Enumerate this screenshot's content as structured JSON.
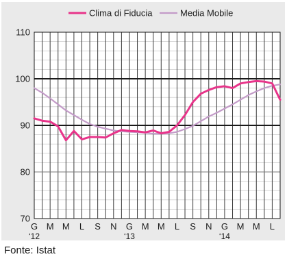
{
  "chart_data": {
    "type": "line",
    "x_tick_labels": [
      "G",
      "M",
      "M",
      "L",
      "S",
      "N",
      "G",
      "M",
      "M",
      "L",
      "S",
      "N",
      "G",
      "M",
      "M",
      "L"
    ],
    "x_year_labels": [
      {
        "tick_index": 0,
        "label": "‘12"
      },
      {
        "tick_index": 6,
        "label": "‘13"
      },
      {
        "tick_index": 12,
        "label": "‘14"
      }
    ],
    "x_months": [
      1,
      2,
      3,
      4,
      5,
      6,
      7,
      8,
      9,
      10,
      11,
      12,
      13,
      14,
      15,
      16,
      17,
      18,
      19,
      20,
      21,
      22,
      23,
      24,
      25,
      26,
      27,
      28,
      29,
      30,
      31,
      32
    ],
    "x_range": [
      1,
      32
    ],
    "y_range": [
      70,
      110
    ],
    "y_ticks": [
      70,
      80,
      90,
      100,
      110
    ],
    "y_major_lines": [
      90,
      100
    ],
    "grid": true,
    "legend_position": "top",
    "series": [
      {
        "name": "Clima di Fiducia",
        "color": "#e8348a",
        "values": [
          91.5,
          91.0,
          90.8,
          89.8,
          86.8,
          88.8,
          87.0,
          87.5,
          87.5,
          87.4,
          88.3,
          89.0,
          88.8,
          88.7,
          88.5,
          88.9,
          88.3,
          88.6,
          90.0,
          92.2,
          95.0,
          96.8,
          97.6,
          98.2,
          98.4,
          98.0,
          99.0,
          99.3,
          99.5,
          99.4,
          99.0,
          95.5
        ]
      },
      {
        "name": "Media Mobile",
        "color": "#c39bc8",
        "values": [
          98.0,
          97.0,
          95.8,
          94.5,
          93.2,
          92.2,
          91.2,
          90.3,
          89.7,
          89.3,
          88.9,
          88.7,
          88.6,
          88.5,
          88.4,
          88.2,
          88.2,
          88.3,
          88.6,
          89.2,
          89.9,
          90.9,
          91.9,
          92.7,
          93.6,
          94.5,
          95.5,
          96.5,
          97.3,
          98.0,
          98.5,
          98.8
        ]
      }
    ]
  },
  "footer": {
    "source": "Fonte: Istat"
  }
}
